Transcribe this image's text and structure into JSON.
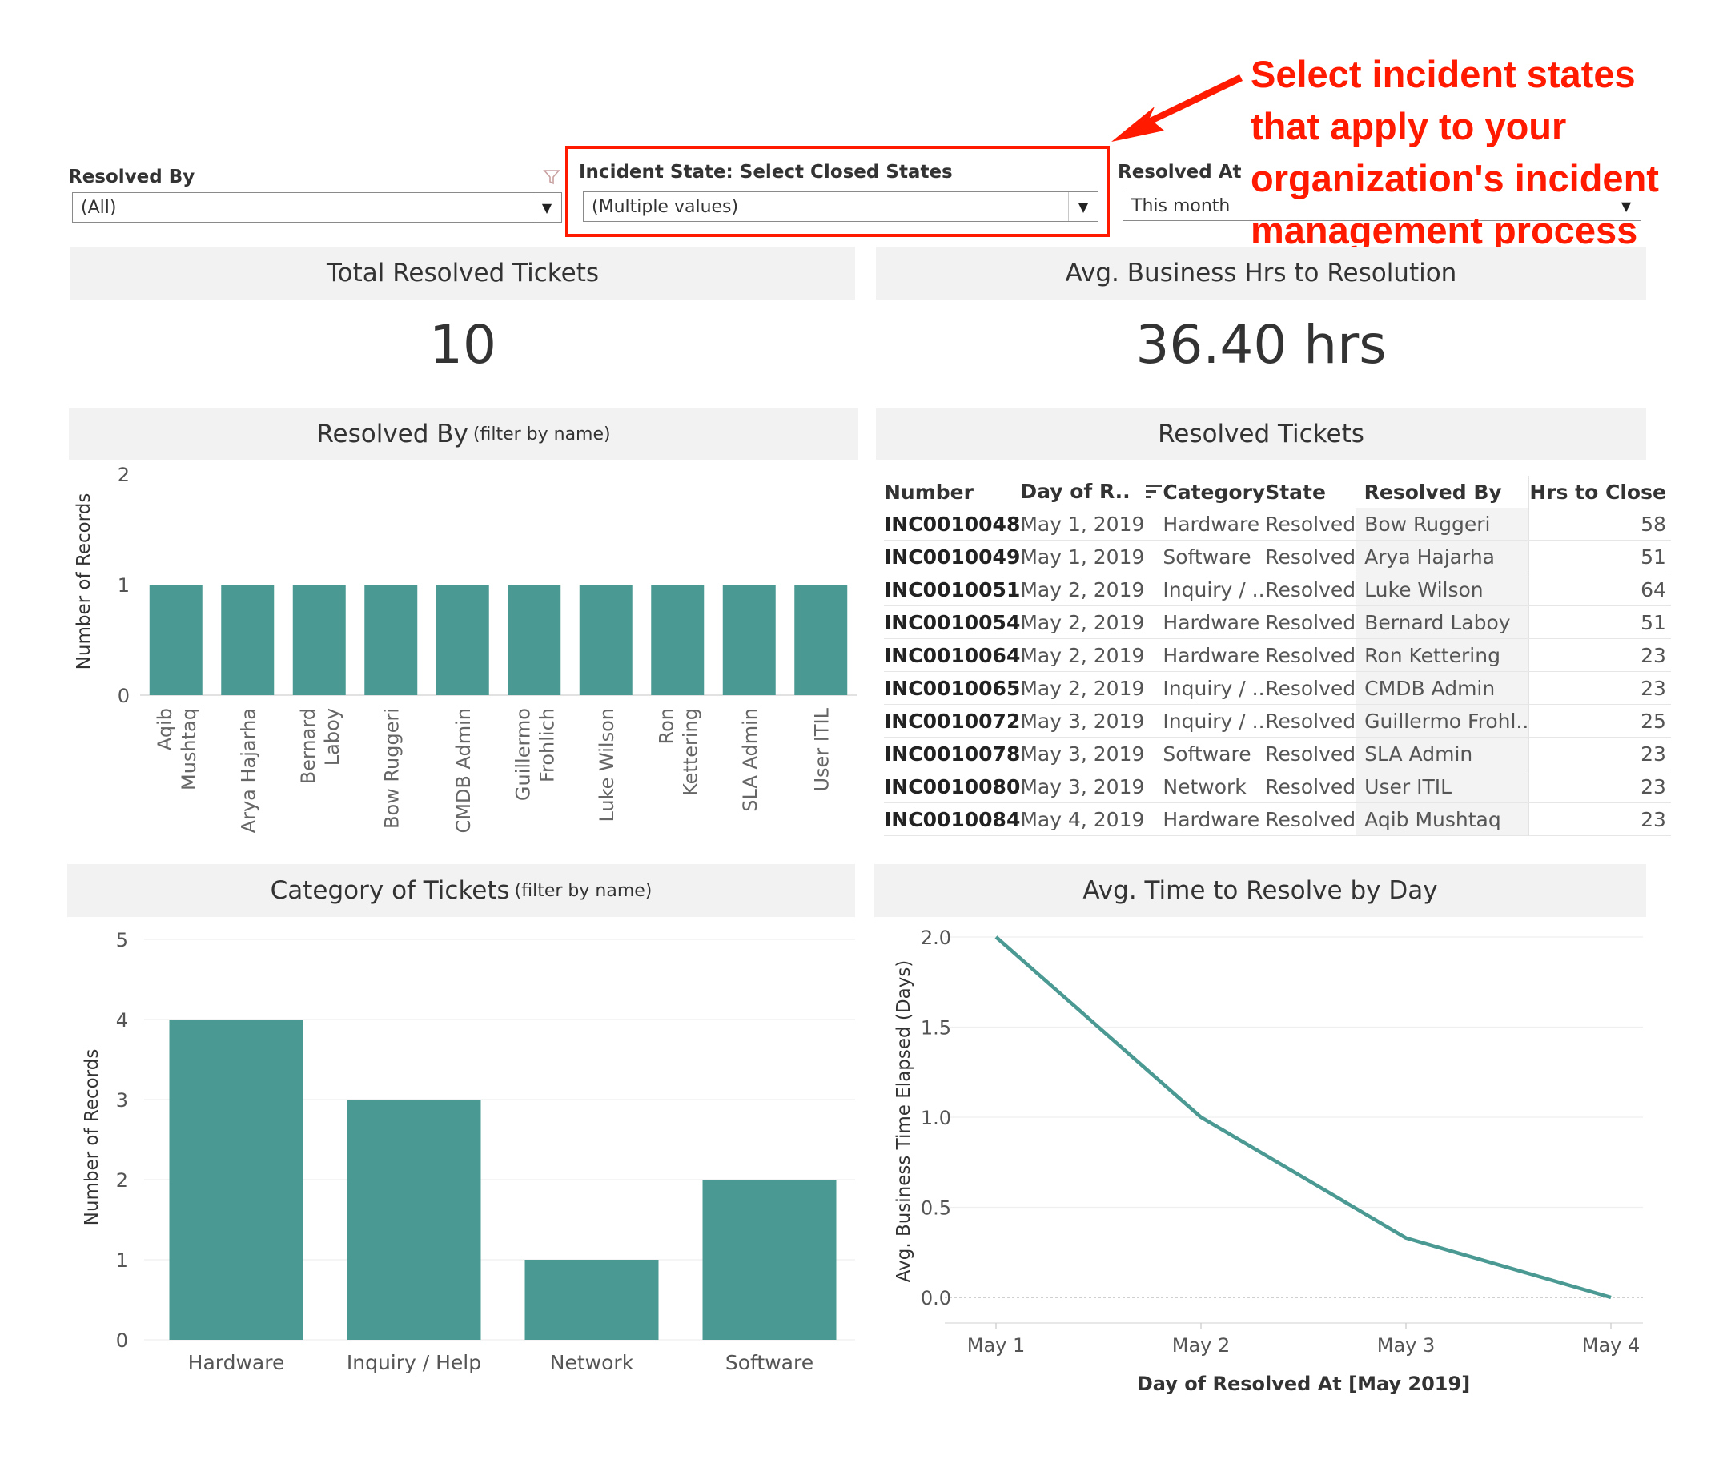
{
  "filters": {
    "resolved_by": {
      "label": "Resolved By",
      "value": "(All)"
    },
    "incident_state": {
      "label": "Incident State: Select Closed States",
      "value": "(Multiple values)"
    },
    "resolved_at": {
      "label": "Resolved At",
      "value": "This month"
    }
  },
  "annotation": {
    "lines": [
      "Select incident states",
      "that apply to your",
      "organization's incident",
      "management process"
    ],
    "color": "#ff1a00"
  },
  "kpis": {
    "total": {
      "title": "Total Resolved Tickets",
      "value": "10"
    },
    "avg": {
      "title": "Avg. Business Hrs to Resolution",
      "value": "36.40 hrs"
    }
  },
  "panels": {
    "resolved_by": {
      "title": "Resolved By",
      "subtitle": "(filter by name)"
    },
    "tickets": {
      "title": "Resolved Tickets"
    },
    "category": {
      "title": "Category of Tickets",
      "subtitle": "(filter by name)"
    },
    "avg_time": {
      "title": "Avg. Time to Resolve by Day"
    }
  },
  "table": {
    "headers": [
      "Number",
      "Day of R..",
      "Category",
      "State",
      "Resolved By",
      "Hrs to Close"
    ],
    "rows": [
      [
        "INC0010048",
        "May 1, 2019",
        "Hardware",
        "Resolved",
        "Bow Ruggeri",
        "58"
      ],
      [
        "INC0010049",
        "May 1, 2019",
        "Software",
        "Resolved",
        "Arya Hajarha",
        "51"
      ],
      [
        "INC0010051",
        "May 2, 2019",
        "Inquiry / ..",
        "Resolved",
        "Luke Wilson",
        "64"
      ],
      [
        "INC0010054",
        "May 2, 2019",
        "Hardware",
        "Resolved",
        "Bernard Laboy",
        "51"
      ],
      [
        "INC0010064",
        "May 2, 2019",
        "Hardware",
        "Resolved",
        "Ron Kettering",
        "23"
      ],
      [
        "INC0010065",
        "May 2, 2019",
        "Inquiry / ..",
        "Resolved",
        "CMDB Admin",
        "23"
      ],
      [
        "INC0010072",
        "May 3, 2019",
        "Inquiry / ..",
        "Resolved",
        "Guillermo Frohl..",
        "25"
      ],
      [
        "INC0010078",
        "May 3, 2019",
        "Software",
        "Resolved",
        "SLA Admin",
        "23"
      ],
      [
        "INC0010080",
        "May 3, 2019",
        "Network",
        "Resolved",
        "User ITIL",
        "23"
      ],
      [
        "INC0010084",
        "May 4, 2019",
        "Hardware",
        "Resolved",
        "Aqib Mushtaq",
        "23"
      ]
    ]
  },
  "chart_data": [
    {
      "type": "bar",
      "ylabel": "Number of Records",
      "ylim": [
        0,
        2
      ],
      "yticks": [
        "0",
        "1",
        "2"
      ],
      "categories": [
        [
          "Aqib",
          "Mushtaq"
        ],
        [
          "Arya Hajarha"
        ],
        [
          "Bernard",
          "Laboy"
        ],
        [
          "Bow Ruggeri"
        ],
        [
          "CMDB Admin"
        ],
        [
          "Guillermo",
          "Frohlich"
        ],
        [
          "Luke Wilson"
        ],
        [
          "Ron",
          "Kettering"
        ],
        [
          "SLA Admin"
        ],
        [
          "User ITIL"
        ]
      ],
      "values": [
        1,
        1,
        1,
        1,
        1,
        1,
        1,
        1,
        1,
        1
      ],
      "color": "#4a9993"
    },
    {
      "type": "bar",
      "ylabel": "Number of Records",
      "ylim": [
        0,
        5
      ],
      "yticks": [
        "0",
        "1",
        "2",
        "3",
        "4",
        "5"
      ],
      "categories": [
        "Hardware",
        "Inquiry / Help",
        "Network",
        "Software"
      ],
      "values": [
        4,
        3,
        1,
        2
      ],
      "color": "#4a9993"
    },
    {
      "type": "line",
      "xlabel": "Day of Resolved At [May 2019]",
      "ylabel": "Avg. Business Time Elapsed (Days)",
      "ylim": [
        0,
        2
      ],
      "yticks": [
        "0.0",
        "0.5",
        "1.0",
        "1.5",
        "2.0"
      ],
      "x": [
        "May 1",
        "May 2",
        "May 3",
        "May 4"
      ],
      "values": [
        2.0,
        1.0,
        0.33,
        0.0
      ],
      "color": "#4a9993"
    }
  ]
}
